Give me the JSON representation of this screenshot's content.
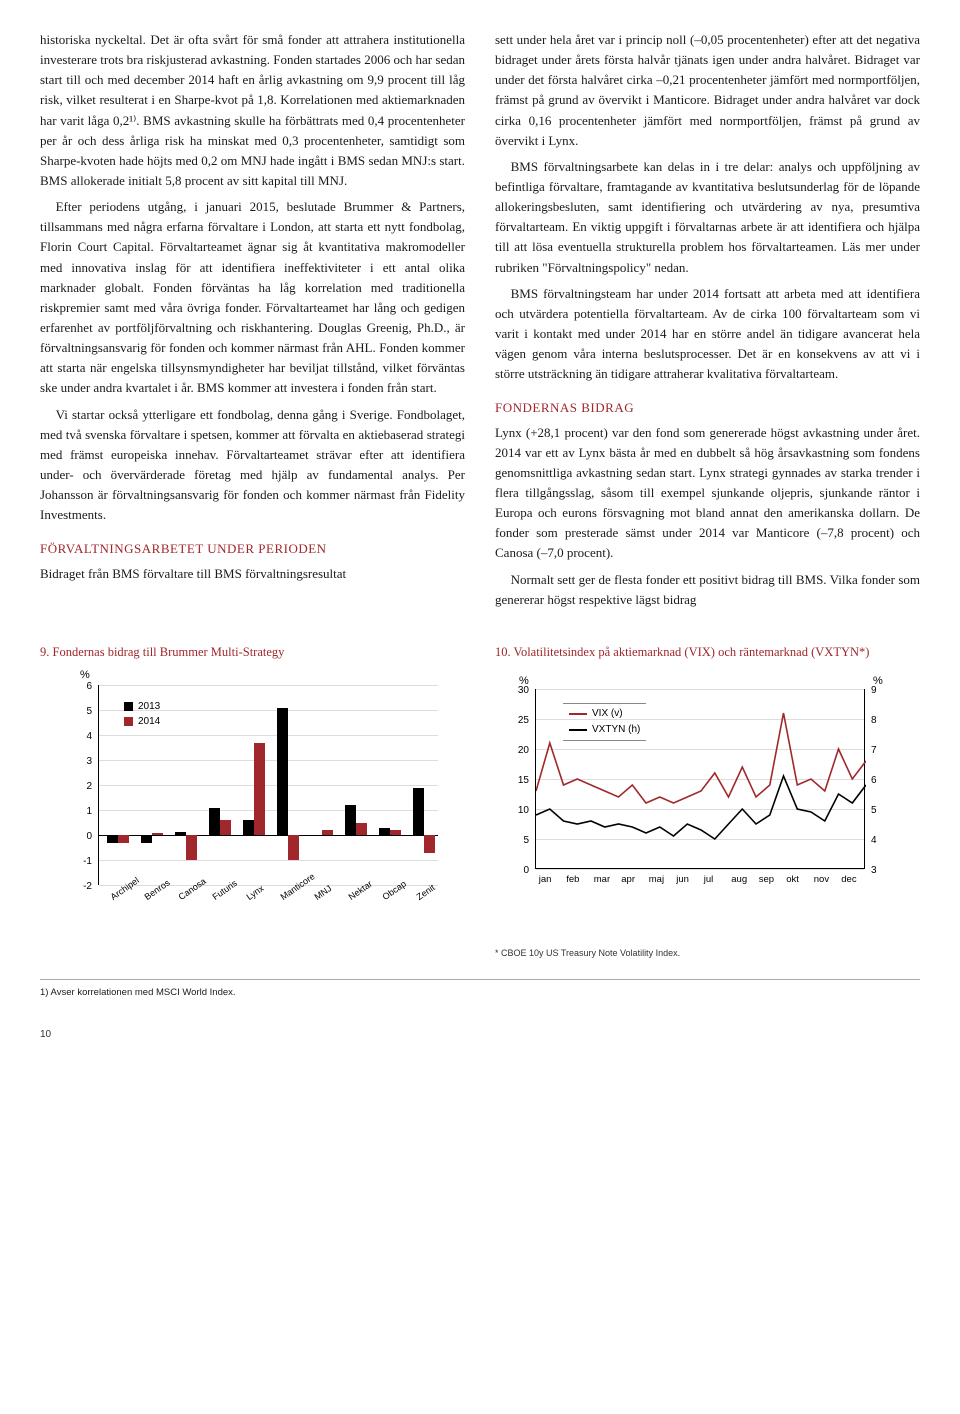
{
  "left_col": {
    "p1": "historiska nyckeltal. Det är ofta svårt för små fonder att attrahera institutionella investerare trots bra riskjusterad avkastning. Fonden startades 2006 och har sedan start till och med december 2014 haft en årlig avkastning om 9,9 procent till låg risk, vilket resulterat i en Sharpe-kvot på 1,8. Korrelationen med aktiemarknaden har varit låga 0,2¹⁾. BMS avkastning skulle ha förbättrats med 0,4 procentenheter per år och dess årliga risk ha minskat med 0,3 procentenheter, samtidigt som Sharpe-kvoten hade höjts med 0,2 om MNJ hade ingått i BMS sedan MNJ:s start. BMS allokerade initialt 5,8 procent av sitt kapital till MNJ.",
    "p2": "Efter periodens utgång, i januari 2015, beslutade Brummer & Partners, tillsammans med några erfarna förvaltare i London, att starta ett nytt fondbolag, Florin Court Capital. Förvaltarteamet ägnar sig åt kvantitativa makromodeller med innovativa inslag för att identifiera ineffektiviteter i ett antal olika marknader globalt. Fonden förväntas ha låg korrelation med traditionella riskpremier samt med våra övriga fonder. Förvaltarteamet har lång och gedigen erfarenhet av portföljförvaltning och riskhantering. Douglas Greenig, Ph.D., är förvaltningsansvarig för fonden och kommer närmast från AHL. Fonden kommer att starta när engelska tillsynsmyndigheter har beviljat tillstånd, vilket förväntas ske under andra kvartalet i år. BMS kommer att investera i fonden från start.",
    "p3": "Vi startar också ytterligare ett fondbolag, denna gång i Sverige. Fondbolaget, med två svenska förvaltare i spetsen, kommer att förvalta en aktiebaserad strategi med främst europeiska innehav. Förvaltarteamet strävar efter att identifiera under- och övervärderade företag med hjälp av fundamental analys. Per Johansson är förvaltningsansvarig för fonden och kommer närmast från Fidelity Investments.",
    "h1": "FÖRVALTNINGSARBETET UNDER PERIODEN",
    "p4": "Bidraget från BMS förvaltare till BMS förvaltningsresultat"
  },
  "right_col": {
    "p1": "sett under hela året var i princip noll (–0,05 procentenheter) efter att det negativa bidraget under årets första halvår tjänats igen under andra halvåret. Bidraget var under det första halvåret cirka –0,21 procentenheter jämfört med normportföljen, främst på grund av övervikt i Manticore. Bidraget under andra halvåret var dock cirka 0,16 procentenheter jämfört med normportföljen, främst på grund av övervikt i Lynx.",
    "p2": "BMS förvaltningsarbete kan delas in i tre delar: analys och uppföljning av befintliga förvaltare, framtagande av kvantitativa beslutsunderlag för de löpande allokeringsbesluten, samt identifiering och utvärdering av nya, presumtiva förvaltarteam. En viktig uppgift i förvaltarnas arbete är att identifiera och hjälpa till att lösa eventuella strukturella problem hos förvaltarteamen. Läs mer under rubriken \"Förvaltningspolicy\" nedan.",
    "p3": "BMS förvaltningsteam har under 2014 fortsatt att arbeta med att identifiera och utvärdera potentiella förvaltarteam. Av de cirka 100 förvaltarteam som vi varit i kontakt med under 2014 har en större andel än tidigare avancerat hela vägen genom våra interna beslutsprocesser. Det är en konsekvens av att vi i större utsträckning än tidigare attraherar kvalitativa förvaltarteam.",
    "h1": "FONDERNAS BIDRAG",
    "p4": "Lynx (+28,1 procent) var den fond som genererade högst avkastning under året. 2014 var ett av Lynx bästa år med en dubbelt så hög årsavkastning som fondens genomsnittliga avkastning sedan start. Lynx strategi gynnades av starka trender i flera tillgångsslag, såsom till exempel sjunkande oljepris, sjunkande räntor i Europa och eurons försvagning mot bland annat den amerikanska dollarn. De fonder som presterade sämst under 2014 var Manticore (–7,8 procent) och Canosa (–7,0 procent).",
    "p5": "Normalt sett ger de flesta fonder ett positivt bidrag till BMS. Vilka fonder som genererar högst respektive lägst bidrag"
  },
  "chart9": {
    "title": "9. Fondernas bidrag till Brummer Multi-Strategy",
    "type": "bar",
    "y_axis_label": "%",
    "y_min": -2,
    "y_max": 6,
    "y_step": 1,
    "color_2013": "#000000",
    "color_2014": "#a0282c",
    "legend": [
      "2013",
      "2014"
    ],
    "categories": [
      "Archipel",
      "Benros",
      "Canosa",
      "Futuris",
      "Lynx",
      "Manticore",
      "MNJ",
      "Nektar",
      "Obcap",
      "Zenit"
    ],
    "values_2013": [
      -0.3,
      -0.3,
      0.15,
      1.1,
      0.6,
      5.1,
      0.0,
      1.2,
      0.3,
      1.9
    ],
    "values_2014": [
      -0.3,
      0.1,
      -1.0,
      0.6,
      3.7,
      -1.0,
      0.2,
      0.5,
      0.2,
      -0.7
    ],
    "grid_color": "#dddddd",
    "axis_color": "#000000",
    "font_family": "Arial",
    "title_color": "#a0282c"
  },
  "chart10": {
    "title": "10. Volatilitetsindex på aktiemarknad (VIX) och räntemarknad (VXTYN*)",
    "type": "line",
    "left_axis_label": "%",
    "right_axis_label": "%",
    "left_min": 0,
    "left_max": 30,
    "left_step": 5,
    "right_min": 3,
    "right_max": 9,
    "right_step": 1,
    "x_labels": [
      "jan",
      "feb",
      "mar",
      "apr",
      "maj",
      "jun",
      "jul",
      "aug",
      "sep",
      "okt",
      "nov",
      "dec"
    ],
    "series": {
      "vix": {
        "label": "VIX (v)",
        "color": "#a0282c",
        "values": [
          13,
          21,
          14,
          15,
          14,
          13,
          12,
          14,
          11,
          12,
          11,
          12,
          13,
          16,
          12,
          17,
          12,
          14,
          26,
          14,
          15,
          13,
          20,
          15,
          18
        ]
      },
      "vxtyn": {
        "label": "VXTYN (h)",
        "color": "#000000",
        "values": [
          4.8,
          5.0,
          4.6,
          4.5,
          4.6,
          4.4,
          4.5,
          4.4,
          4.2,
          4.4,
          4.1,
          4.5,
          4.3,
          4.0,
          4.5,
          5.0,
          4.5,
          4.8,
          6.1,
          5.0,
          4.9,
          4.6,
          5.5,
          5.2,
          5.8
        ]
      }
    },
    "footnote": "* CBOE 10y US Treasury Note Volatility Index.",
    "grid_color": "#dddddd",
    "axis_color": "#000000",
    "title_color": "#a0282c"
  },
  "bottom_note": "1) Avser korrelationen med MSCI World Index.",
  "page_number": "10"
}
